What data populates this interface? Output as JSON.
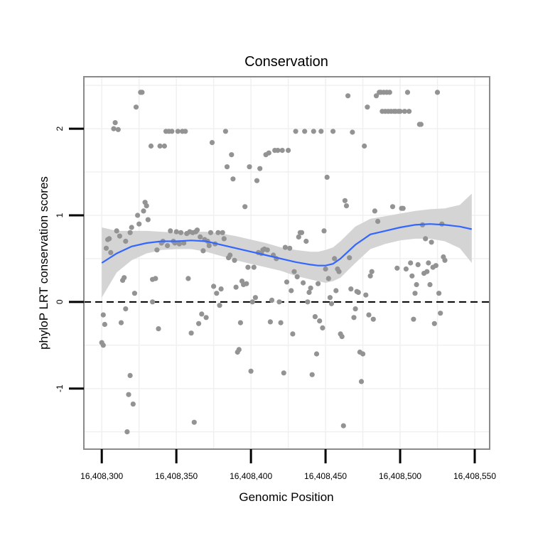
{
  "chart_data": {
    "type": "scatter",
    "title": "Conservation",
    "xlabel": "Genomic Position",
    "ylabel": "phyloP LRT conservation scores",
    "x_ticks": [
      16408300,
      16408350,
      16408400,
      16408450,
      16408500,
      16408550
    ],
    "x_tick_labels": [
      "16,408,300",
      "16,408,350",
      "16,408,400",
      "16,408,450",
      "16,408,500",
      "16,408,550"
    ],
    "y_ticks": [
      -1,
      0,
      1,
      2
    ],
    "y_tick_labels": [
      "-1",
      "0",
      "1",
      "2"
    ],
    "xlim": [
      16408288,
      16408560
    ],
    "ylim": [
      -1.7,
      2.6
    ],
    "reference_line": {
      "y": 0,
      "style": "dashed"
    },
    "smooth": {
      "name": "loess fit",
      "x": [
        16408300,
        16408310,
        16408320,
        16408330,
        16408340,
        16408350,
        16408360,
        16408370,
        16408380,
        16408390,
        16408400,
        16408410,
        16408420,
        16408430,
        16408440,
        16408445,
        16408450,
        16408455,
        16408460,
        16408470,
        16408480,
        16408490,
        16408500,
        16408510,
        16408520,
        16408530,
        16408540,
        16408548
      ],
      "y": [
        0.45,
        0.56,
        0.64,
        0.68,
        0.7,
        0.7,
        0.71,
        0.7,
        0.66,
        0.62,
        0.58,
        0.54,
        0.5,
        0.46,
        0.43,
        0.42,
        0.42,
        0.44,
        0.5,
        0.66,
        0.78,
        0.82,
        0.86,
        0.89,
        0.9,
        0.89,
        0.87,
        0.84
      ],
      "lower": [
        0.05,
        0.34,
        0.48,
        0.56,
        0.6,
        0.61,
        0.61,
        0.58,
        0.53,
        0.48,
        0.44,
        0.4,
        0.36,
        0.3,
        0.26,
        0.24,
        0.22,
        0.24,
        0.28,
        0.45,
        0.61,
        0.67,
        0.71,
        0.73,
        0.73,
        0.7,
        0.62,
        0.45
      ],
      "upper": [
        0.86,
        0.82,
        0.82,
        0.82,
        0.81,
        0.8,
        0.81,
        0.81,
        0.79,
        0.76,
        0.72,
        0.68,
        0.63,
        0.6,
        0.58,
        0.58,
        0.6,
        0.63,
        0.7,
        0.87,
        0.96,
        0.99,
        1.02,
        1.05,
        1.07,
        1.08,
        1.12,
        1.25
      ]
    },
    "points": [
      {
        "x": 16408300,
        "y": -0.47
      },
      {
        "x": 16408301,
        "y": -0.5
      },
      {
        "x": 16408301,
        "y": -0.15
      },
      {
        "x": 16408302,
        "y": -0.26
      },
      {
        "x": 16408303,
        "y": 0.62
      },
      {
        "x": 16408304,
        "y": 0.72
      },
      {
        "x": 16408305,
        "y": 0.73
      },
      {
        "x": 16408306,
        "y": 0.57
      },
      {
        "x": 16408308,
        "y": 2.0
      },
      {
        "x": 16408309,
        "y": 2.07
      },
      {
        "x": 16408310,
        "y": 0.82
      },
      {
        "x": 16408311,
        "y": 1.99
      },
      {
        "x": 16408312,
        "y": 0.76
      },
      {
        "x": 16408313,
        "y": -0.24
      },
      {
        "x": 16408314,
        "y": 0.25
      },
      {
        "x": 16408315,
        "y": 0.28
      },
      {
        "x": 16408316,
        "y": 0.7
      },
      {
        "x": 16408316,
        "y": -0.08
      },
      {
        "x": 16408317,
        "y": -1.5
      },
      {
        "x": 16408318,
        "y": -1.07
      },
      {
        "x": 16408319,
        "y": 0.8
      },
      {
        "x": 16408319,
        "y": -0.85
      },
      {
        "x": 16408320,
        "y": 0.86
      },
      {
        "x": 16408321,
        "y": -1.18
      },
      {
        "x": 16408322,
        "y": 0.1
      },
      {
        "x": 16408323,
        "y": 2.25
      },
      {
        "x": 16408324,
        "y": 1.0
      },
      {
        "x": 16408325,
        "y": 0.9
      },
      {
        "x": 16408326,
        "y": 2.42
      },
      {
        "x": 16408327,
        "y": 2.42
      },
      {
        "x": 16408328,
        "y": 1.05
      },
      {
        "x": 16408329,
        "y": 1.15
      },
      {
        "x": 16408330,
        "y": 1.11
      },
      {
        "x": 16408331,
        "y": 0.95
      },
      {
        "x": 16408333,
        "y": 1.8
      },
      {
        "x": 16408334,
        "y": 0.26
      },
      {
        "x": 16408334,
        "y": 0.0
      },
      {
        "x": 16408336,
        "y": 0.27
      },
      {
        "x": 16408337,
        "y": 0.6
      },
      {
        "x": 16408338,
        "y": -0.31
      },
      {
        "x": 16408339,
        "y": 1.8
      },
      {
        "x": 16408340,
        "y": 0.68
      },
      {
        "x": 16408341,
        "y": 0.7
      },
      {
        "x": 16408342,
        "y": 1.8
      },
      {
        "x": 16408343,
        "y": 1.97
      },
      {
        "x": 16408344,
        "y": 0.65
      },
      {
        "x": 16408345,
        "y": 1.97
      },
      {
        "x": 16408346,
        "y": 0.82
      },
      {
        "x": 16408347,
        "y": 1.97
      },
      {
        "x": 16408348,
        "y": 0.7
      },
      {
        "x": 16408349,
        "y": 0.68
      },
      {
        "x": 16408350,
        "y": 0.81
      },
      {
        "x": 16408351,
        "y": 1.97
      },
      {
        "x": 16408352,
        "y": 0.67
      },
      {
        "x": 16408353,
        "y": 0.8
      },
      {
        "x": 16408354,
        "y": 1.97
      },
      {
        "x": 16408355,
        "y": 0.68
      },
      {
        "x": 16408356,
        "y": 1.97
      },
      {
        "x": 16408357,
        "y": 0.79
      },
      {
        "x": 16408358,
        "y": 0.27
      },
      {
        "x": 16408359,
        "y": 0.81
      },
      {
        "x": 16408360,
        "y": -0.36
      },
      {
        "x": 16408361,
        "y": 0.8
      },
      {
        "x": 16408362,
        "y": -1.39
      },
      {
        "x": 16408363,
        "y": 0.81
      },
      {
        "x": 16408364,
        "y": 0.83
      },
      {
        "x": 16408365,
        "y": -0.25
      },
      {
        "x": 16408366,
        "y": 0.75
      },
      {
        "x": 16408367,
        "y": -0.14
      },
      {
        "x": 16408368,
        "y": 0.59
      },
      {
        "x": 16408369,
        "y": 0.72
      },
      {
        "x": 16408370,
        "y": -0.18
      },
      {
        "x": 16408371,
        "y": 0.7
      },
      {
        "x": 16408372,
        "y": 0.65
      },
      {
        "x": 16408373,
        "y": 0.8
      },
      {
        "x": 16408374,
        "y": 1.84
      },
      {
        "x": 16408375,
        "y": 0.18
      },
      {
        "x": 16408376,
        "y": 0.67
      },
      {
        "x": 16408377,
        "y": 0.1
      },
      {
        "x": 16408378,
        "y": 0.8
      },
      {
        "x": 16408379,
        "y": -0.04
      },
      {
        "x": 16408380,
        "y": 0.15
      },
      {
        "x": 16408381,
        "y": 0.8
      },
      {
        "x": 16408382,
        "y": 0.73
      },
      {
        "x": 16408383,
        "y": 1.97
      },
      {
        "x": 16408384,
        "y": 1.56
      },
      {
        "x": 16408385,
        "y": 0.51
      },
      {
        "x": 16408386,
        "y": 0.54
      },
      {
        "x": 16408387,
        "y": 1.7
      },
      {
        "x": 16408388,
        "y": 1.42
      },
      {
        "x": 16408389,
        "y": 0.48
      },
      {
        "x": 16408390,
        "y": 0.17
      },
      {
        "x": 16408391,
        "y": -0.58
      },
      {
        "x": 16408392,
        "y": -0.55
      },
      {
        "x": 16408393,
        "y": -0.24
      },
      {
        "x": 16408394,
        "y": 0.24
      },
      {
        "x": 16408395,
        "y": 0.2
      },
      {
        "x": 16408396,
        "y": 1.1
      },
      {
        "x": 16408397,
        "y": 0.21
      },
      {
        "x": 16408398,
        "y": 0.4
      },
      {
        "x": 16408399,
        "y": 1.56
      },
      {
        "x": 16408400,
        "y": -0.8
      },
      {
        "x": 16408401,
        "y": 0.0
      },
      {
        "x": 16408402,
        "y": 0.4
      },
      {
        "x": 16408403,
        "y": 0.05
      },
      {
        "x": 16408404,
        "y": 1.4
      },
      {
        "x": 16408405,
        "y": 0.57
      },
      {
        "x": 16408406,
        "y": 1.54
      },
      {
        "x": 16408407,
        "y": 0.56
      },
      {
        "x": 16408408,
        "y": 0.6
      },
      {
        "x": 16408409,
        "y": 0.61
      },
      {
        "x": 16408410,
        "y": 1.7
      },
      {
        "x": 16408411,
        "y": 0.6
      },
      {
        "x": 16408412,
        "y": 1.72
      },
      {
        "x": 16408413,
        "y": -0.23
      },
      {
        "x": 16408414,
        "y": 0.02
      },
      {
        "x": 16408415,
        "y": 0.54
      },
      {
        "x": 16408416,
        "y": 1.75
      },
      {
        "x": 16408417,
        "y": 0.5
      },
      {
        "x": 16408418,
        "y": 1.75
      },
      {
        "x": 16408419,
        "y": 0.0
      },
      {
        "x": 16408420,
        "y": -0.24
      },
      {
        "x": 16408421,
        "y": 1.75
      },
      {
        "x": 16408422,
        "y": -0.82
      },
      {
        "x": 16408423,
        "y": 0.63
      },
      {
        "x": 16408424,
        "y": 0.23
      },
      {
        "x": 16408425,
        "y": 1.75
      },
      {
        "x": 16408426,
        "y": 0.62
      },
      {
        "x": 16408427,
        "y": 0.13
      },
      {
        "x": 16408428,
        "y": -0.37
      },
      {
        "x": 16408429,
        "y": 0.35
      },
      {
        "x": 16408430,
        "y": 1.97
      },
      {
        "x": 16408431,
        "y": 0.29
      },
      {
        "x": 16408432,
        "y": 0.75
      },
      {
        "x": 16408433,
        "y": 0.8
      },
      {
        "x": 16408434,
        "y": 0.8
      },
      {
        "x": 16408435,
        "y": 0.22
      },
      {
        "x": 16408436,
        "y": 1.97
      },
      {
        "x": 16408437,
        "y": 0.7
      },
      {
        "x": 16408438,
        "y": 0.0
      },
      {
        "x": 16408439,
        "y": 0.11
      },
      {
        "x": 16408440,
        "y": 0.16
      },
      {
        "x": 16408441,
        "y": -0.84
      },
      {
        "x": 16408442,
        "y": 1.97
      },
      {
        "x": 16408443,
        "y": -0.17
      },
      {
        "x": 16408444,
        "y": -0.6
      },
      {
        "x": 16408445,
        "y": 0.21
      },
      {
        "x": 16408446,
        "y": -0.22
      },
      {
        "x": 16408447,
        "y": 1.97
      },
      {
        "x": 16408448,
        "y": -0.3
      },
      {
        "x": 16408449,
        "y": 0.82
      },
      {
        "x": 16408450,
        "y": 0.38
      },
      {
        "x": 16408451,
        "y": 1.44
      },
      {
        "x": 16408452,
        "y": 0.27
      },
      {
        "x": 16408453,
        "y": 0.05
      },
      {
        "x": 16408454,
        "y": -0.02
      },
      {
        "x": 16408455,
        "y": 1.97
      },
      {
        "x": 16408456,
        "y": 0.5
      },
      {
        "x": 16408457,
        "y": 0.13
      },
      {
        "x": 16408458,
        "y": 0.38
      },
      {
        "x": 16408459,
        "y": 0.35
      },
      {
        "x": 16408460,
        "y": -0.37
      },
      {
        "x": 16408461,
        "y": -0.4
      },
      {
        "x": 16408462,
        "y": -1.43
      },
      {
        "x": 16408463,
        "y": 1.17
      },
      {
        "x": 16408464,
        "y": 1.11
      },
      {
        "x": 16408465,
        "y": 2.38
      },
      {
        "x": 16408466,
        "y": 0.51
      },
      {
        "x": 16408467,
        "y": 0.15
      },
      {
        "x": 16408468,
        "y": 1.96
      },
      {
        "x": 16408469,
        "y": -0.18
      },
      {
        "x": 16408470,
        "y": -0.08
      },
      {
        "x": 16408471,
        "y": 0.12
      },
      {
        "x": 16408472,
        "y": 0.11
      },
      {
        "x": 16408473,
        "y": -0.58
      },
      {
        "x": 16408474,
        "y": -0.92
      },
      {
        "x": 16408475,
        "y": -0.6
      },
      {
        "x": 16408476,
        "y": 1.8
      },
      {
        "x": 16408477,
        "y": 0.08
      },
      {
        "x": 16408478,
        "y": 2.25
      },
      {
        "x": 16408479,
        "y": -0.15
      },
      {
        "x": 16408480,
        "y": 0.3
      },
      {
        "x": 16408481,
        "y": 0.35
      },
      {
        "x": 16408482,
        "y": -0.2
      },
      {
        "x": 16408483,
        "y": 1.05
      },
      {
        "x": 16408484,
        "y": 2.38
      },
      {
        "x": 16408485,
        "y": 0.93
      },
      {
        "x": 16408486,
        "y": 2.42
      },
      {
        "x": 16408487,
        "y": 2.42
      },
      {
        "x": 16408488,
        "y": 2.2
      },
      {
        "x": 16408489,
        "y": 2.42
      },
      {
        "x": 16408490,
        "y": 2.2
      },
      {
        "x": 16408491,
        "y": 2.42
      },
      {
        "x": 16408492,
        "y": 2.2
      },
      {
        "x": 16408493,
        "y": 2.42
      },
      {
        "x": 16408494,
        "y": 2.2
      },
      {
        "x": 16408495,
        "y": 1.1
      },
      {
        "x": 16408496,
        "y": 2.2
      },
      {
        "x": 16408497,
        "y": 2.2
      },
      {
        "x": 16408498,
        "y": 0.39
      },
      {
        "x": 16408499,
        "y": 2.2
      },
      {
        "x": 16408500,
        "y": 2.2
      },
      {
        "x": 16408501,
        "y": 1.08
      },
      {
        "x": 16408502,
        "y": 1.08
      },
      {
        "x": 16408503,
        "y": 2.2
      },
      {
        "x": 16408504,
        "y": 0.38
      },
      {
        "x": 16408505,
        "y": 2.42
      },
      {
        "x": 16408506,
        "y": 2.2
      },
      {
        "x": 16408507,
        "y": 0.45
      },
      {
        "x": 16408508,
        "y": 0.3
      },
      {
        "x": 16408509,
        "y": -0.2
      },
      {
        "x": 16408510,
        "y": 0.1
      },
      {
        "x": 16408511,
        "y": 0.2
      },
      {
        "x": 16408512,
        "y": 0.43
      },
      {
        "x": 16408513,
        "y": 2.05
      },
      {
        "x": 16408514,
        "y": 2.05
      },
      {
        "x": 16408515,
        "y": 0.89
      },
      {
        "x": 16408516,
        "y": 0.33
      },
      {
        "x": 16408517,
        "y": 0.73
      },
      {
        "x": 16408518,
        "y": 0.35
      },
      {
        "x": 16408519,
        "y": 0.45
      },
      {
        "x": 16408520,
        "y": 0.2
      },
      {
        "x": 16408521,
        "y": 0.69
      },
      {
        "x": 16408522,
        "y": 0.4
      },
      {
        "x": 16408523,
        "y": -0.25
      },
      {
        "x": 16408524,
        "y": 0.42
      },
      {
        "x": 16408525,
        "y": 2.42
      },
      {
        "x": 16408526,
        "y": 0.1
      },
      {
        "x": 16408527,
        "y": -0.13
      },
      {
        "x": 16408528,
        "y": 0.9
      },
      {
        "x": 16408529,
        "y": 0.52
      },
      {
        "x": 16408530,
        "y": 0.48
      }
    ]
  }
}
